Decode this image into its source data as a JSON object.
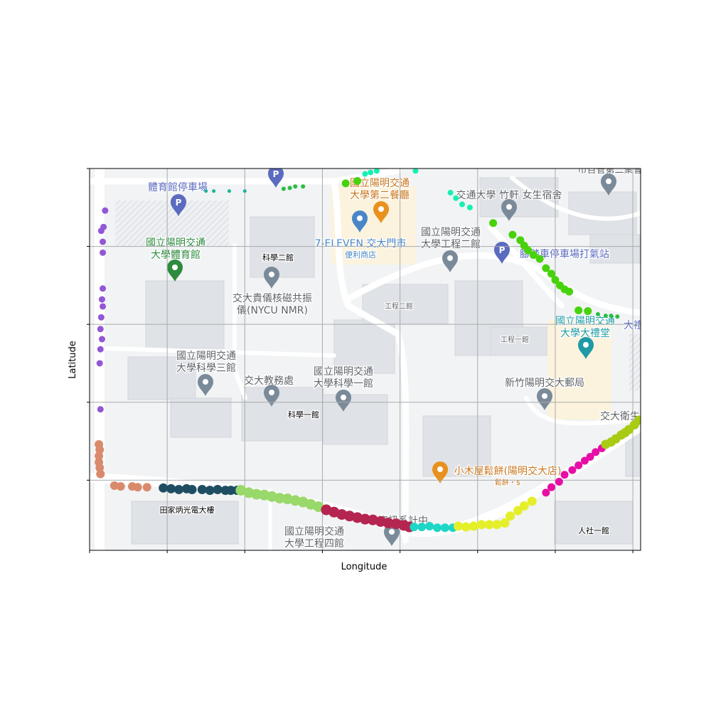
{
  "chart_data": {
    "type": "scatter",
    "title": "",
    "xlabel": "Longitude",
    "ylabel": "Latitude",
    "xlim": [
      0,
      7.1
    ],
    "ylim": [
      0,
      4.9
    ],
    "xticks": [
      0,
      1,
      2,
      3,
      4,
      5,
      6,
      7
    ],
    "yticks": [
      0.9,
      1.9,
      2.9,
      3.9,
      4.9
    ],
    "tick_labels_shown": false,
    "grid": true,
    "legend": "none",
    "background": "map",
    "series": [
      {
        "color": "#9256d6",
        "marker_size": 4.5,
        "x": [
          0.2,
          0.18,
          0.15,
          0.17,
          0.17,
          0.17,
          0.16,
          0.17,
          0.15,
          0.14,
          0.16,
          0.14,
          0.13,
          0.14
        ],
        "y": [
          4.36,
          4.15,
          4.1,
          3.96,
          3.82,
          3.36,
          3.22,
          3.13,
          2.99,
          2.84,
          2.71,
          2.58,
          2.4,
          1.81
        ]
      },
      {
        "color": "#d98a6c",
        "marker_size": 6,
        "x": [
          0.12,
          0.13,
          0.12,
          0.12,
          0.13,
          0.14,
          0.32,
          0.4,
          0.55,
          0.62,
          0.74
        ],
        "y": [
          1.36,
          1.29,
          1.21,
          1.13,
          1.06,
          0.98,
          0.83,
          0.82,
          0.82,
          0.81,
          0.81
        ]
      },
      {
        "color": "#1f4e63",
        "marker_size": 6.5,
        "x": [
          0.95,
          1.05,
          1.15,
          1.25,
          1.32,
          1.45,
          1.55,
          1.65,
          1.75,
          1.82,
          1.9,
          1.95
        ],
        "y": [
          0.8,
          0.79,
          0.78,
          0.79,
          0.78,
          0.78,
          0.77,
          0.78,
          0.77,
          0.77,
          0.77,
          0.77
        ]
      },
      {
        "color": "#99d86a",
        "marker_size": 7.5,
        "x": [
          1.95,
          2.05,
          2.15,
          2.25,
          2.35,
          2.45,
          2.55,
          2.65,
          2.75,
          2.85,
          2.95,
          3.05
        ],
        "y": [
          0.77,
          0.74,
          0.72,
          0.71,
          0.69,
          0.67,
          0.66,
          0.64,
          0.62,
          0.59,
          0.56,
          0.52
        ]
      },
      {
        "color": "#b42550",
        "marker_size": 7.5,
        "x": [
          3.05,
          3.15,
          3.25,
          3.35,
          3.45,
          3.55,
          3.65,
          3.75,
          3.85,
          3.95,
          4.05,
          4.12
        ],
        "y": [
          0.52,
          0.49,
          0.46,
          0.44,
          0.42,
          0.4,
          0.39,
          0.37,
          0.35,
          0.34,
          0.32,
          0.3
        ]
      },
      {
        "color": "#1dd6c6",
        "marker_size": 6,
        "x": [
          4.18,
          4.28,
          4.38,
          4.48,
          4.58,
          4.68
        ],
        "y": [
          0.3,
          0.3,
          0.31,
          0.29,
          0.29,
          0.29
        ]
      },
      {
        "color": "#e4ef2a",
        "marker_size": 6.5,
        "x": [
          4.75,
          4.85,
          4.95,
          5.05,
          5.15,
          5.25,
          5.35,
          5.42,
          5.52,
          5.6,
          5.7
        ],
        "y": [
          0.31,
          0.3,
          0.31,
          0.33,
          0.33,
          0.33,
          0.35,
          0.44,
          0.51,
          0.57,
          0.63
        ]
      },
      {
        "color": "#e70ea5",
        "marker_size": 5.5,
        "x": [
          5.88,
          5.95,
          6.05,
          6.12,
          6.22,
          6.3,
          6.38,
          6.45,
          6.52,
          6.6,
          6.65
        ],
        "y": [
          0.74,
          0.81,
          0.88,
          0.97,
          1.03,
          1.09,
          1.15,
          1.2,
          1.26,
          1.31,
          1.36
        ]
      },
      {
        "color": "#a8cb14",
        "marker_size": 6.5,
        "x": [
          6.65,
          6.72,
          6.78,
          6.85,
          6.9,
          6.95,
          7.02,
          7.08
        ],
        "y": [
          1.36,
          1.39,
          1.43,
          1.48,
          1.51,
          1.55,
          1.61,
          1.67
        ]
      },
      {
        "color": "#48d20c",
        "marker_size": 5.5,
        "x": [
          3.3,
          3.45,
          5.2,
          5.45,
          5.55,
          5.6,
          5.65,
          5.72,
          5.8,
          5.88,
          5.95,
          6.0,
          6.06,
          6.12,
          6.18,
          6.3,
          6.42
        ],
        "y": [
          4.71,
          4.74,
          4.2,
          4.05,
          3.98,
          3.91,
          3.85,
          3.79,
          3.74,
          3.62,
          3.55,
          3.47,
          3.4,
          3.35,
          3.32,
          3.08,
          3.07
        ]
      },
      {
        "color": "#2abd44",
        "marker_size": 3,
        "x": [
          2.5,
          2.58,
          2.65,
          2.75,
          6.55,
          6.65,
          6.72,
          6.8
        ],
        "y": [
          4.64,
          4.65,
          4.67,
          4.67,
          3.03,
          3.01,
          3.01,
          3.0
        ]
      },
      {
        "color": "#16f0b4",
        "marker_size": 4,
        "x": [
          3.55,
          3.62,
          3.7,
          4.2,
          4.65,
          4.72,
          4.8,
          4.9
        ],
        "y": [
          4.83,
          4.85,
          4.87,
          4.87,
          4.59,
          4.52,
          4.44,
          4.4
        ]
      },
      {
        "color": "#1ab39a",
        "marker_size": 2.5,
        "x": [
          1.5,
          1.6,
          1.8,
          2.0
        ],
        "y": [
          4.61,
          4.61,
          4.61,
          4.61
        ]
      }
    ]
  },
  "map": {
    "labels": [
      {
        "text": "體育館停車場",
        "color": "#5b6bbf"
      },
      {
        "text": "國立陽明交通\n大學第二餐廳",
        "color": "#c8771d"
      },
      {
        "text": "交通大學 竹軒 女生宿舍",
        "color": "#5f6368"
      },
      {
        "text": "市百管第二聚會",
        "color": "#5f6368"
      },
      {
        "text": "國立陽明交通\n大學體育館",
        "color": "#2e8b3e"
      },
      {
        "text": "科學二館",
        "color": "#000000"
      },
      {
        "text": "7-ELEVEN 交大門市",
        "color": "#4a86c7"
      },
      {
        "text": "便利商店",
        "color": "#4a86c7"
      },
      {
        "text": "國立陽明交通\n大學工程二館",
        "color": "#5f6368"
      },
      {
        "text": "腳踏車停車場打氣站",
        "color": "#5b6bbf"
      },
      {
        "text": "交大貴儀核磁共振\n儀(NYCU NMR)",
        "color": "#5f6368"
      },
      {
        "text": "工程二館",
        "color": "#5f6368"
      },
      {
        "text": "國立陽明交通\n大學大禮堂",
        "color": "#1f9aa6"
      },
      {
        "text": "大禮",
        "color": "#5b6bbf"
      },
      {
        "text": "工程一館",
        "color": "#5f6368"
      },
      {
        "text": "國立陽明交通\n大學科學三館",
        "color": "#5f6368"
      },
      {
        "text": "交大教務處",
        "color": "#5f6368"
      },
      {
        "text": "國立陽明交通\n大學科學一館",
        "color": "#5f6368"
      },
      {
        "text": "新竹陽明交大郵局",
        "color": "#5f6368"
      },
      {
        "text": "科學一館",
        "color": "#000000"
      },
      {
        "text": "交大衛生",
        "color": "#5f6368"
      },
      {
        "text": "小木屋鬆餅(陽明交大店)",
        "color": "#c8771d"
      },
      {
        "text": "鬆餅・$",
        "color": "#c8771d"
      },
      {
        "text": "田家炳光電大樓",
        "color": "#000000"
      },
      {
        "text": "國立陽明交通\n大學工程四館",
        "color": "#5f6368"
      },
      {
        "text": "資訊系計中",
        "color": "#5f6368"
      },
      {
        "text": "人社一館",
        "color": "#000000"
      }
    ]
  }
}
